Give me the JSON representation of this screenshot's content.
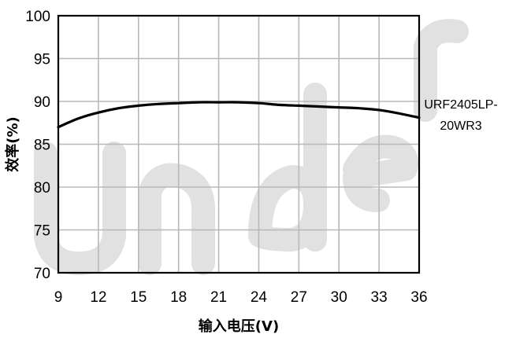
{
  "chart_data": {
    "type": "line",
    "title": "",
    "xlabel": "输入电压(V)",
    "ylabel": "效率(%)",
    "xlim": [
      9,
      36
    ],
    "ylim": [
      70,
      100
    ],
    "x_ticks": [
      9,
      12,
      15,
      18,
      21,
      24,
      27,
      30,
      33,
      36
    ],
    "y_ticks": [
      70,
      75,
      80,
      85,
      90,
      95,
      100
    ],
    "x_tick_labels": [
      "9",
      "12",
      "15",
      "18",
      "21",
      "24",
      "27",
      "30",
      "33",
      "36"
    ],
    "y_tick_labels": [
      "70",
      "75",
      "80",
      "85",
      "90",
      "95",
      "100"
    ],
    "grid": true,
    "legend_position": "right",
    "series": [
      {
        "name": "URF2405LP-20WR3",
        "name_lines": [
          "URF2405LP-",
          "20WR3"
        ],
        "x": [
          9,
          10.5,
          12,
          13.5,
          15,
          16.5,
          18,
          19.5,
          21,
          22.5,
          24,
          25.5,
          27,
          28.5,
          30,
          31.5,
          33,
          34.5,
          36
        ],
        "y": [
          87.0,
          88.0,
          88.7,
          89.2,
          89.5,
          89.7,
          89.8,
          89.9,
          89.9,
          89.9,
          89.8,
          89.6,
          89.5,
          89.4,
          89.3,
          89.2,
          89.0,
          88.6,
          88.1
        ]
      }
    ],
    "watermark": "Under"
  }
}
